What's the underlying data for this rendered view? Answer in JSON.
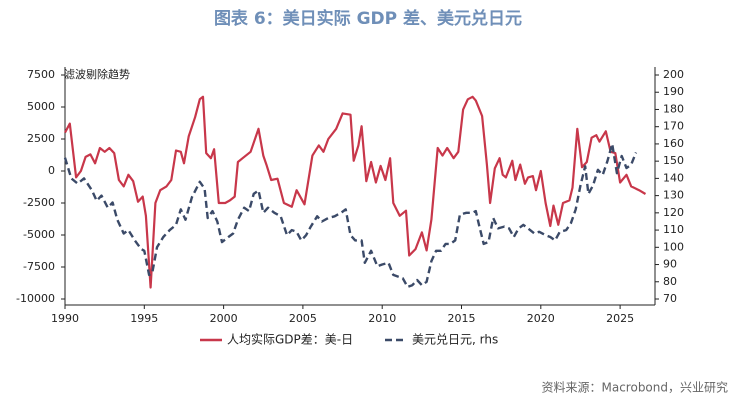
{
  "chart_data": {
    "type": "line",
    "title": "图表 6：美日实际 GDP 差、美元兑日元",
    "annotation": "滤波剔除趋势",
    "source": "资料来源：Macrobond，兴业研究",
    "xlim": [
      1990,
      2027.2
    ],
    "xticks": [
      1990,
      1995,
      2000,
      2005,
      2010,
      2015,
      2020,
      2025
    ],
    "ylim": [
      -10000,
      7500
    ],
    "yticks": [
      -10000,
      -7500,
      -5000,
      -2500,
      0,
      2500,
      5000,
      7500
    ],
    "y2lim": [
      70,
      200
    ],
    "y2ticks": [
      70,
      80,
      90,
      100,
      110,
      120,
      130,
      140,
      150,
      160,
      170,
      180,
      190,
      200
    ],
    "series": [
      {
        "name": "人均实际GDP差：美-日",
        "color": "#c8374a",
        "dashed": false,
        "x": [
          1990.0,
          1990.3,
          1990.7,
          1991.0,
          1991.3,
          1991.6,
          1991.9,
          1992.2,
          1992.5,
          1992.8,
          1993.1,
          1993.4,
          1993.7,
          1994.0,
          1994.3,
          1994.6,
          1994.9,
          1995.1,
          1995.4,
          1995.7,
          1996.0,
          1996.4,
          1996.7,
          1997.0,
          1997.3,
          1997.5,
          1997.8,
          1998.2,
          1998.5,
          1998.7,
          1998.9,
          1999.2,
          1999.4,
          1999.7,
          2000.1,
          2000.4,
          2000.7,
          2000.9,
          2001.2,
          2001.7,
          2002.2,
          2002.5,
          2002.7,
          2003.0,
          2003.4,
          2003.8,
          2004.3,
          2004.6,
          2005.1,
          2005.6,
          2006.0,
          2006.3,
          2006.6,
          2007.1,
          2007.5,
          2008.0,
          2008.2,
          2008.5,
          2008.7,
          2009.0,
          2009.3,
          2009.6,
          2009.9,
          2010.2,
          2010.5,
          2010.7,
          2011.1,
          2011.5,
          2011.7,
          2012.1,
          2012.5,
          2012.8,
          2013.1,
          2013.5,
          2013.8,
          2014.1,
          2014.5,
          2014.8,
          2015.1,
          2015.4,
          2015.7,
          2015.9,
          2016.3,
          2016.6,
          2016.8,
          2017.1,
          2017.4,
          2017.6,
          2017.8,
          2018.2,
          2018.4,
          2018.7,
          2019.0,
          2019.2,
          2019.5,
          2019.7,
          2020.0,
          2020.3,
          2020.6,
          2020.8,
          2021.1,
          2021.4,
          2021.8,
          2022.0,
          2022.3,
          2022.6,
          2022.9,
          2023.2,
          2023.5,
          2023.7,
          2024.1,
          2024.4,
          2024.7,
          2025.0,
          2025.4,
          2025.7,
          2026.2,
          2026.6
        ],
        "values": [
          3000,
          3700,
          -500,
          0,
          1100,
          1300,
          600,
          1800,
          1500,
          1800,
          1400,
          -700,
          -1200,
          -300,
          -800,
          -2400,
          -2000,
          -3500,
          -9100,
          -2500,
          -1500,
          -1200,
          -700,
          1600,
          1500,
          600,
          2700,
          4200,
          5600,
          5800,
          1400,
          1000,
          1700,
          -2500,
          -2500,
          -2300,
          -2000,
          700,
          1000,
          1500,
          3300,
          1200,
          500,
          -700,
          -600,
          -2500,
          -2800,
          -1500,
          -2600,
          1200,
          2000,
          1500,
          2500,
          3300,
          4500,
          4400,
          800,
          2000,
          3500,
          -800,
          700,
          -900,
          400,
          -700,
          1000,
          -2500,
          -3500,
          -3100,
          -6600,
          -6100,
          -4800,
          -6200,
          -3800,
          1800,
          1200,
          1800,
          1000,
          1500,
          4800,
          5600,
          5800,
          5500,
          4300,
          500,
          -2500,
          200,
          1000,
          -300,
          -500,
          800,
          -700,
          500,
          -1000,
          -500,
          -400,
          -1500,
          0,
          -2500,
          -4300,
          -2700,
          -4200,
          -2500,
          -2300,
          -1300,
          3300,
          300,
          700,
          2600,
          2800,
          2300,
          3100,
          1500,
          1400,
          -900,
          -300,
          -1200,
          -1500,
          -1800
        ]
      },
      {
        "name": "美元兑日元, rhs",
        "color": "#3b4a68",
        "dashed": true,
        "axis": "y2",
        "x": [
          1990.0,
          1990.4,
          1990.8,
          1991.2,
          1991.7,
          1992.0,
          1992.3,
          1992.7,
          1993.0,
          1993.3,
          1993.7,
          1994.0,
          1994.4,
          1994.8,
          1995.0,
          1995.3,
          1995.5,
          1995.8,
          1996.2,
          1996.6,
          1997.0,
          1997.3,
          1997.6,
          1998.0,
          1998.5,
          1998.8,
          1999.0,
          1999.3,
          1999.6,
          1999.9,
          2000.3,
          2000.6,
          2000.9,
          2001.3,
          2001.6,
          2001.9,
          2002.2,
          2002.5,
          2002.8,
          2003.2,
          2003.6,
          2004.0,
          2004.3,
          2004.6,
          2004.9,
          2005.2,
          2005.5,
          2005.9,
          2006.2,
          2006.6,
          2007.0,
          2007.4,
          2007.7,
          2008.0,
          2008.3,
          2008.7,
          2008.9,
          2009.3,
          2009.7,
          2010.0,
          2010.4,
          2010.7,
          2011.0,
          2011.3,
          2011.6,
          2011.9,
          2012.2,
          2012.5,
          2012.8,
          2013.1,
          2013.4,
          2013.7,
          2014.0,
          2014.3,
          2014.6,
          2014.9,
          2015.3,
          2015.7,
          2015.9,
          2016.1,
          2016.4,
          2016.7,
          2017.0,
          2017.3,
          2017.7,
          2018.0,
          2018.3,
          2018.6,
          2018.9,
          2019.2,
          2019.6,
          2019.9,
          2020.3,
          2020.6,
          2020.9,
          2021.2,
          2021.6,
          2021.9,
          2022.2,
          2022.5,
          2022.8,
          2023.0,
          2023.3,
          2023.6,
          2023.9,
          2024.2,
          2024.5,
          2024.8,
          2025.1,
          2025.4,
          2025.7,
          2026.0
        ],
        "values": [
          152,
          140,
          137,
          140,
          133,
          127,
          130,
          123,
          126,
          116,
          108,
          110,
          104,
          99,
          98,
          84,
          85,
          100,
          106,
          110,
          113,
          122,
          116,
          129,
          138,
          134,
          117,
          121,
          115,
          103,
          106,
          108,
          116,
          123,
          121,
          131,
          133,
          120,
          123,
          120,
          118,
          107,
          110,
          109,
          104,
          107,
          112,
          118,
          115,
          117,
          118,
          120,
          122,
          107,
          104,
          104,
          91,
          98,
          89,
          90,
          91,
          84,
          83,
          82,
          77,
          78,
          81,
          78,
          80,
          92,
          98,
          98,
          102,
          102,
          104,
          119,
          120,
          120,
          121,
          113,
          102,
          103,
          117,
          111,
          112,
          111,
          106,
          111,
          113,
          111,
          108,
          109,
          107,
          106,
          104,
          109,
          110,
          114,
          122,
          136,
          147,
          131,
          136,
          145,
          142,
          150,
          160,
          143,
          153,
          146,
          148,
          155
        ]
      }
    ]
  }
}
